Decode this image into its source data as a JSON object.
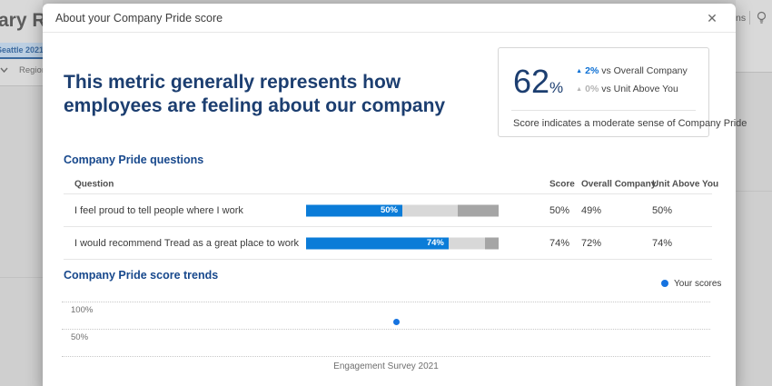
{
  "background": {
    "page_title_fragment": "ary Re",
    "filter_chip_label": "Seattle 2021",
    "region_label": "Region",
    "actions_fragment": "ns"
  },
  "modal": {
    "title": "About your Company Pride score",
    "headline": "This metric generally represents how employees are feeling about our company",
    "score_card": {
      "score_value": "62",
      "score_unit": "%",
      "comparisons": [
        {
          "delta": "2%",
          "label": "vs Overall Company",
          "direction": "up",
          "tone": "positive"
        },
        {
          "delta": "0%",
          "label": "vs Unit Above You",
          "direction": "up",
          "tone": "neutral"
        }
      ],
      "summary": "Score indicates a moderate sense of Company Pride"
    },
    "questions_section": {
      "title": "Company Pride questions",
      "columns": {
        "question": "Question",
        "score": "Score",
        "overall": "Overall Company",
        "unit": "Unit Above You"
      },
      "rows": [
        {
          "question": "I feel proud to tell people where I work",
          "bar_label": "50%",
          "bar": {
            "favorable": 50,
            "neutral": 29,
            "unfavorable": 21
          },
          "score": "50%",
          "overall": "49%",
          "unit": "50%"
        },
        {
          "question": "I would recommend Tread as a great place to work",
          "bar_label": "74%",
          "bar": {
            "favorable": 74,
            "neutral": 19,
            "unfavorable": 7
          },
          "score": "74%",
          "overall": "72%",
          "unit": "74%"
        }
      ]
    },
    "trends_section": {
      "title": "Company Pride score trends",
      "legend_label": "Your scores",
      "y_axis_ticks": [
        "100%",
        "50%"
      ],
      "x_axis_label": "Engagement Survey 2021",
      "point_value_pct": 62
    }
  },
  "chart_data": {
    "type": "scatter",
    "title": "Company Pride score trends",
    "x": [
      "Engagement Survey 2021"
    ],
    "series": [
      {
        "name": "Your scores",
        "values": [
          62
        ]
      }
    ],
    "ylim": [
      0,
      100
    ],
    "y_tick_labels": [
      "100%",
      "50%"
    ],
    "grid": "horizontal-dotted",
    "legend_position": "top-right"
  },
  "colors": {
    "navy": "#1c3e70",
    "section_blue": "#17488c",
    "accent_blue": "#0b6fd4",
    "bar_blue": "#0b7cd8",
    "dot_blue": "#1673e0",
    "bar_neutral_gray": "#d8d8d8",
    "bar_unfavorable_gray": "#a5a5a5"
  }
}
